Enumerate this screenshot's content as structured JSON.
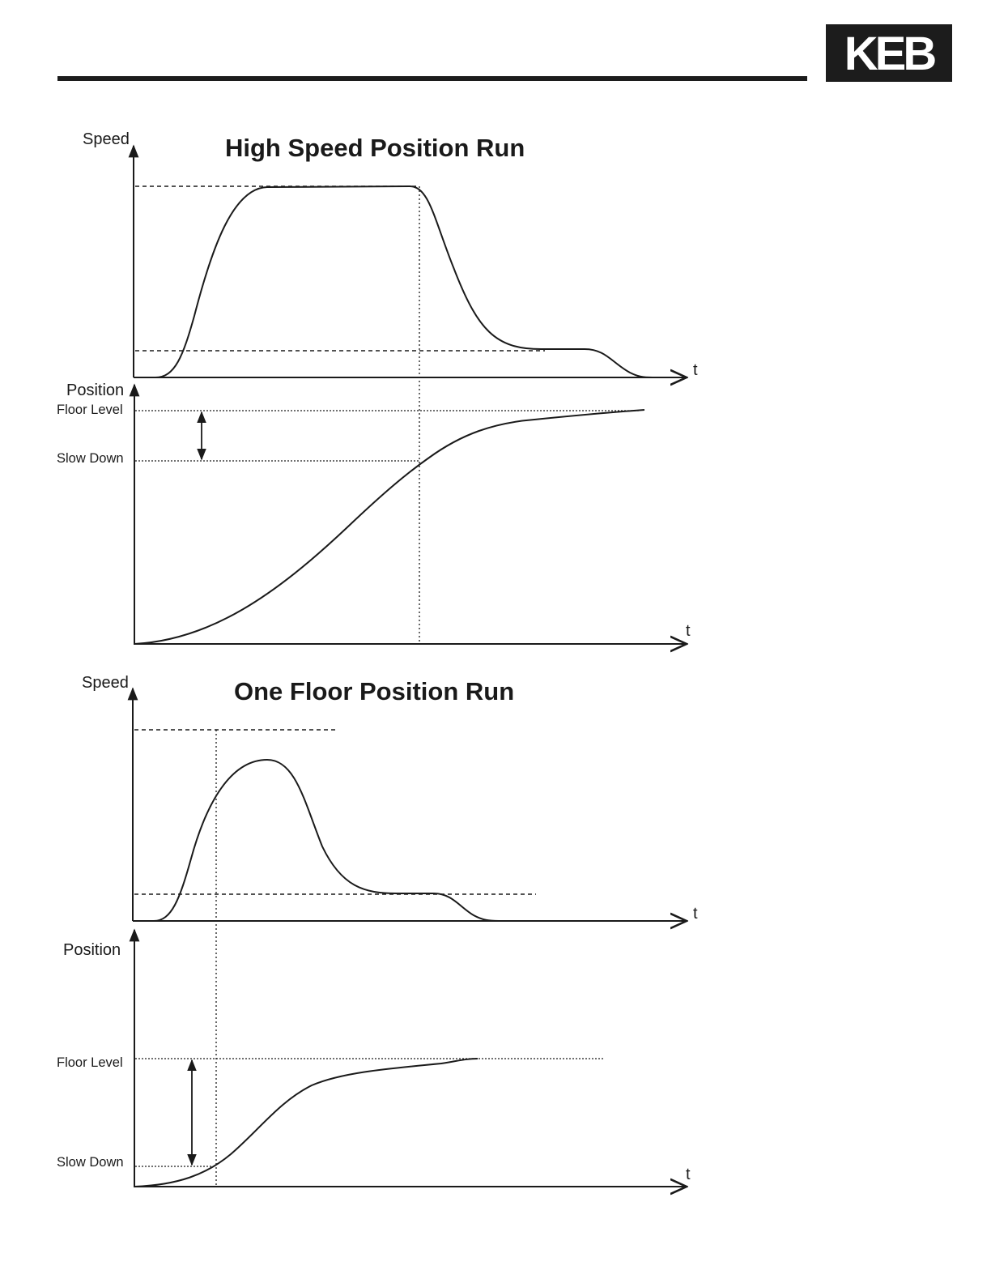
{
  "logo": {
    "text": "KEB"
  },
  "diagrams": [
    {
      "title": "High Speed Position Run",
      "speed_axis_label": "Speed",
      "position_axis_label": "Position",
      "time_label_speed": "t",
      "time_label_position": "t",
      "floor_level_label": "Floor Level",
      "slow_down_label": "Slow Down"
    },
    {
      "title": "One Floor Position Run",
      "speed_axis_label": "Speed",
      "position_axis_label": "Position",
      "time_label_speed": "t",
      "time_label_position": "t",
      "floor_level_label": "Floor Level",
      "slow_down_label": "Slow Down"
    }
  ]
}
